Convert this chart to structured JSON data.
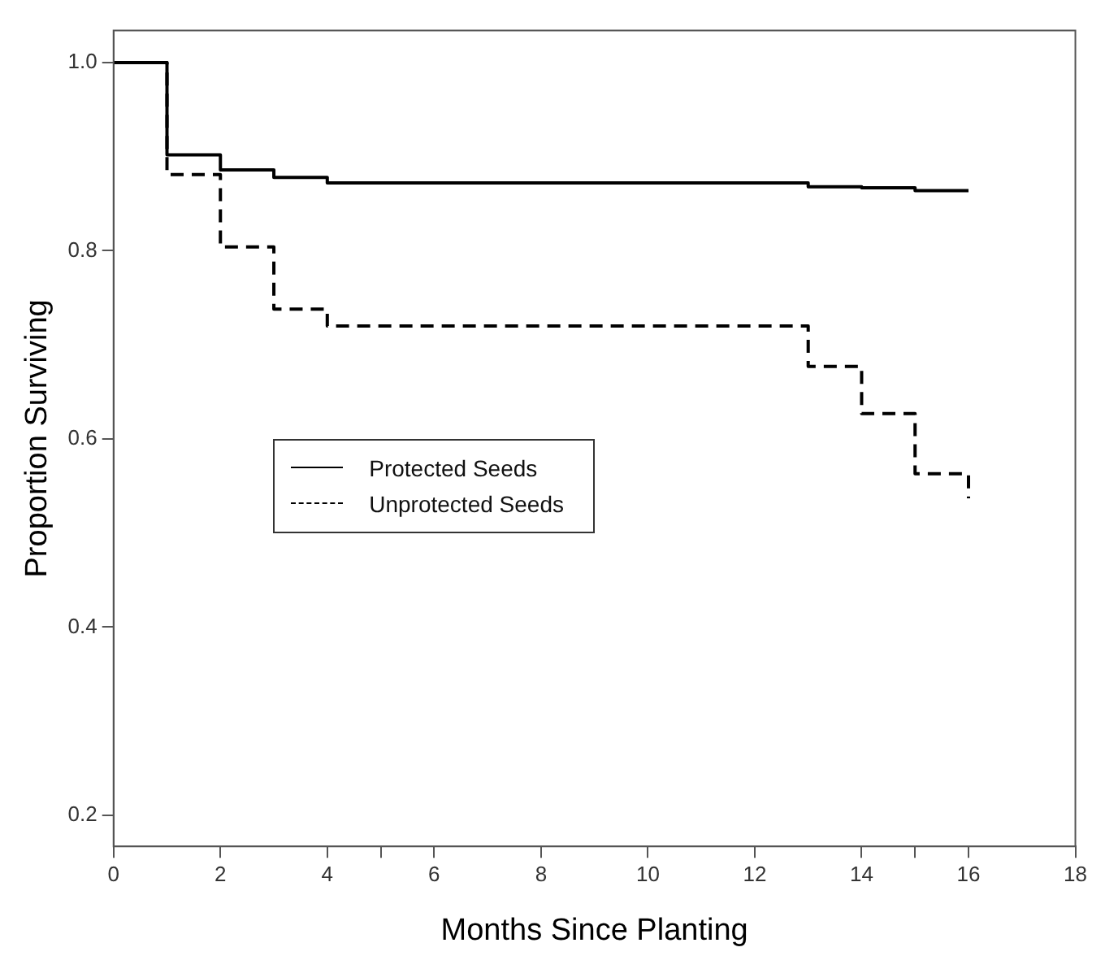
{
  "chart_data": {
    "type": "step",
    "xlabel": "Months Since Planting",
    "ylabel": "Proportion Surviving",
    "x": [
      0,
      1,
      2,
      3,
      4,
      13,
      14,
      15,
      16
    ],
    "series": [
      {
        "name": "Protected Seeds",
        "color": "#000000",
        "line_style": "solid",
        "values": [
          1.0,
          0.902,
          0.886,
          0.878,
          0.872,
          0.868,
          0.867,
          0.864,
          0.864
        ]
      },
      {
        "name": "Unprotected Seeds",
        "color": "#000000",
        "line_style": "dashed",
        "values": [
          1.0,
          0.881,
          0.804,
          0.738,
          0.72,
          0.677,
          0.627,
          0.563,
          0.537
        ]
      }
    ],
    "xlim": [
      0,
      18
    ],
    "xticks": [
      0,
      2,
      4,
      {
        "value": 5,
        "label": null
      },
      6,
      8,
      10,
      12,
      14,
      {
        "value": 15,
        "label": null
      },
      16,
      18
    ],
    "ylim": [
      0.167,
      1.034
    ],
    "yticks": [
      {
        "value": 0.2,
        "label": "0.2"
      },
      {
        "value": 0.4,
        "label": "0.4"
      },
      {
        "value": 0.6,
        "label": "0.6"
      },
      {
        "value": 0.8,
        "label": "0.8"
      },
      {
        "value": 1.0,
        "label": "1.0"
      }
    ],
    "grid": false,
    "legend": "center left",
    "marker": "none"
  }
}
